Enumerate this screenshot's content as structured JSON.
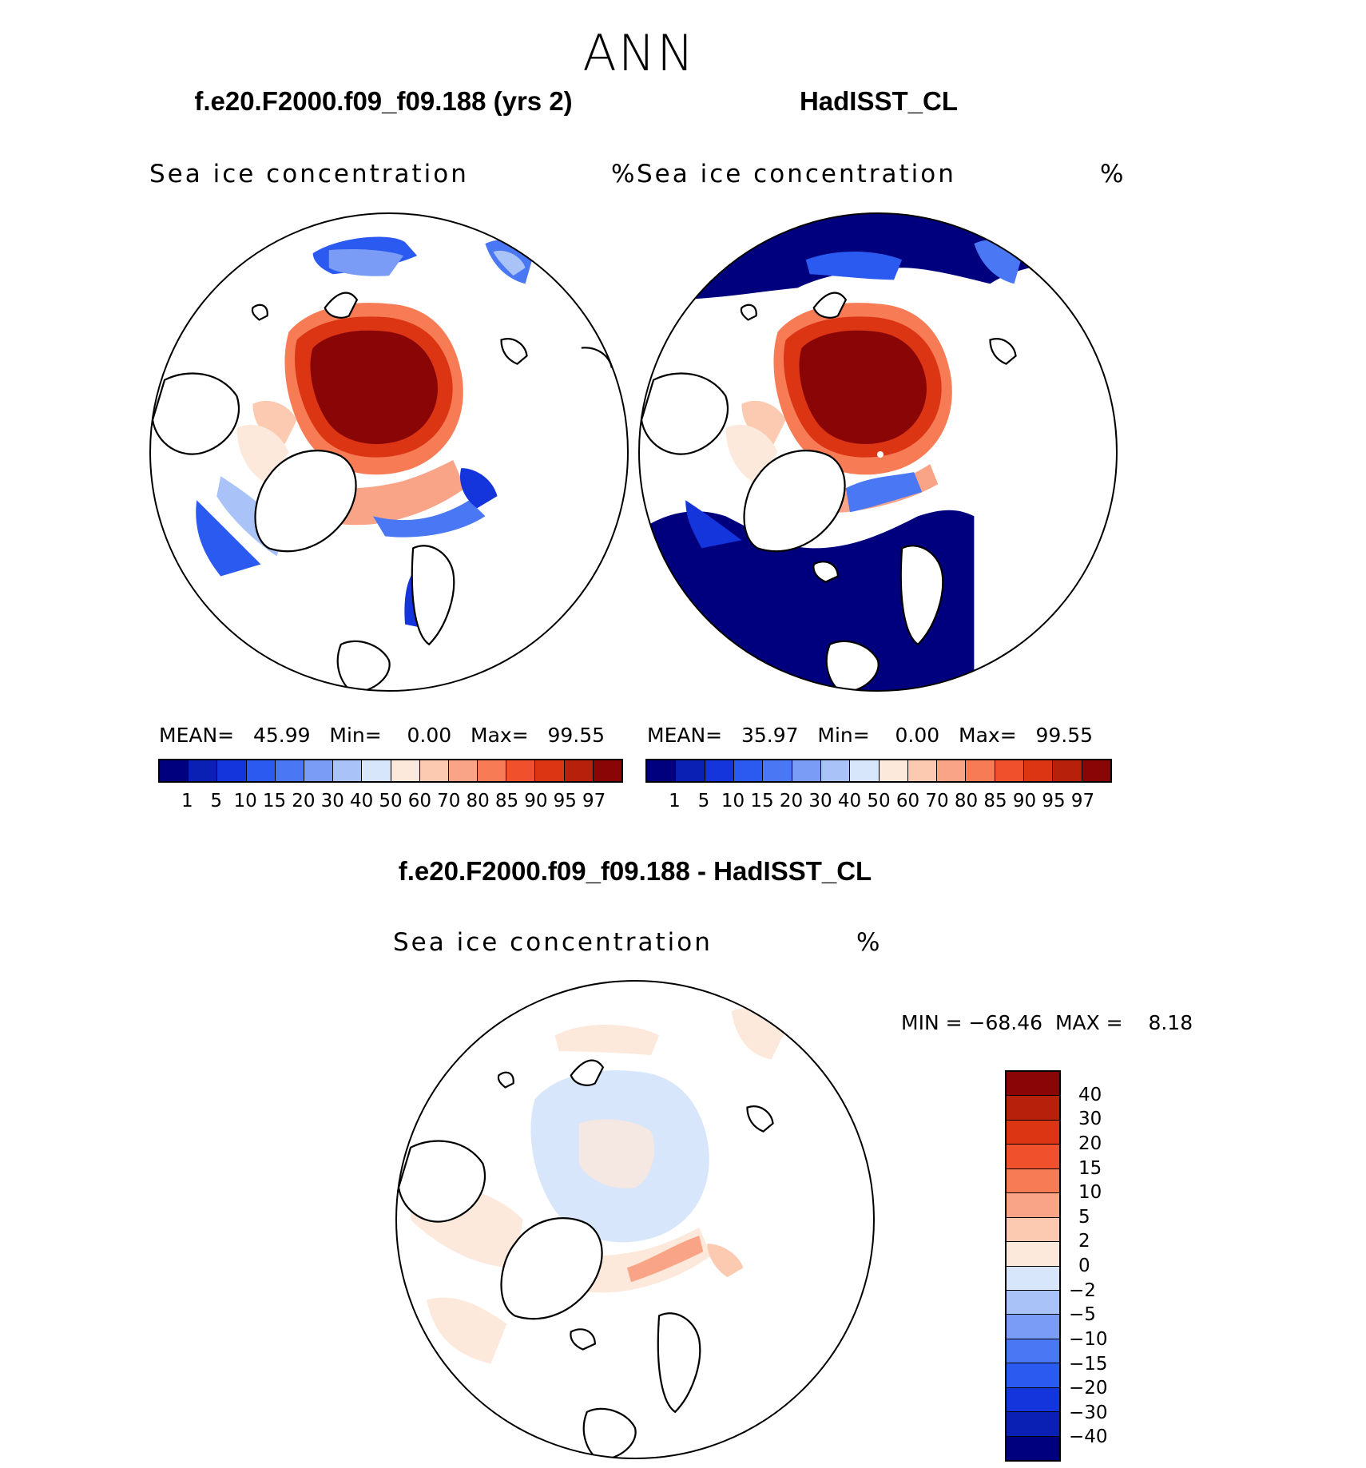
{
  "season": "ANN",
  "panels": [
    {
      "title": "f.e20.F2000.f09_f09.188 (yrs 2)",
      "variable": "Sea ice concentration",
      "units": "%",
      "stats": {
        "mean_label": "MEAN=",
        "mean": "45.99",
        "min_label": "Min=",
        "min": "0.00",
        "max_label": "Max=",
        "max": "99.55"
      }
    },
    {
      "title": "HadISST_CL",
      "variable": "Sea ice concentration",
      "units": "%",
      "stats": {
        "mean_label": "MEAN=",
        "mean": "35.97",
        "min_label": "Min=",
        "min": "0.00",
        "max_label": "Max=",
        "max": "99.55"
      }
    }
  ],
  "diff_panel": {
    "title": "f.e20.F2000.f09_f09.188 - HadISST_CL",
    "variable": "Sea ice concentration",
    "units": "%",
    "stats": {
      "min_label": "MIN =",
      "min": "−68.46",
      "max_label": "MAX =",
      "max": "8.18"
    }
  },
  "colorbar_main": {
    "colors": [
      "#00007f",
      "#0a1fb4",
      "#1434dc",
      "#2a5af0",
      "#4a78f4",
      "#7a9cf6",
      "#a9c2f8",
      "#d7e6fb",
      "#fde9dc",
      "#fcc9b1",
      "#f9a486",
      "#f77b55",
      "#f0502c",
      "#dc3514",
      "#b7200b",
      "#8a0606"
    ],
    "ticks": [
      "1",
      "5",
      "10",
      "15",
      "20",
      "30",
      "40",
      "50",
      "60",
      "70",
      "80",
      "85",
      "90",
      "95",
      "97"
    ]
  },
  "colorbar_diff": {
    "colors": [
      "#8a0606",
      "#b7200b",
      "#dc3514",
      "#f0502c",
      "#f77b55",
      "#f9a486",
      "#fcc9b1",
      "#fde9dc",
      "#d7e6fb",
      "#a9c2f8",
      "#7a9cf6",
      "#4a78f4",
      "#2a5af0",
      "#1434dc",
      "#0a1fb4",
      "#00007f"
    ],
    "ticks": [
      "40",
      "30",
      "20",
      "15",
      "10",
      "5",
      "2",
      "0",
      "−2",
      "−5",
      "−10",
      "−15",
      "−20",
      "−30",
      "−40"
    ]
  }
}
